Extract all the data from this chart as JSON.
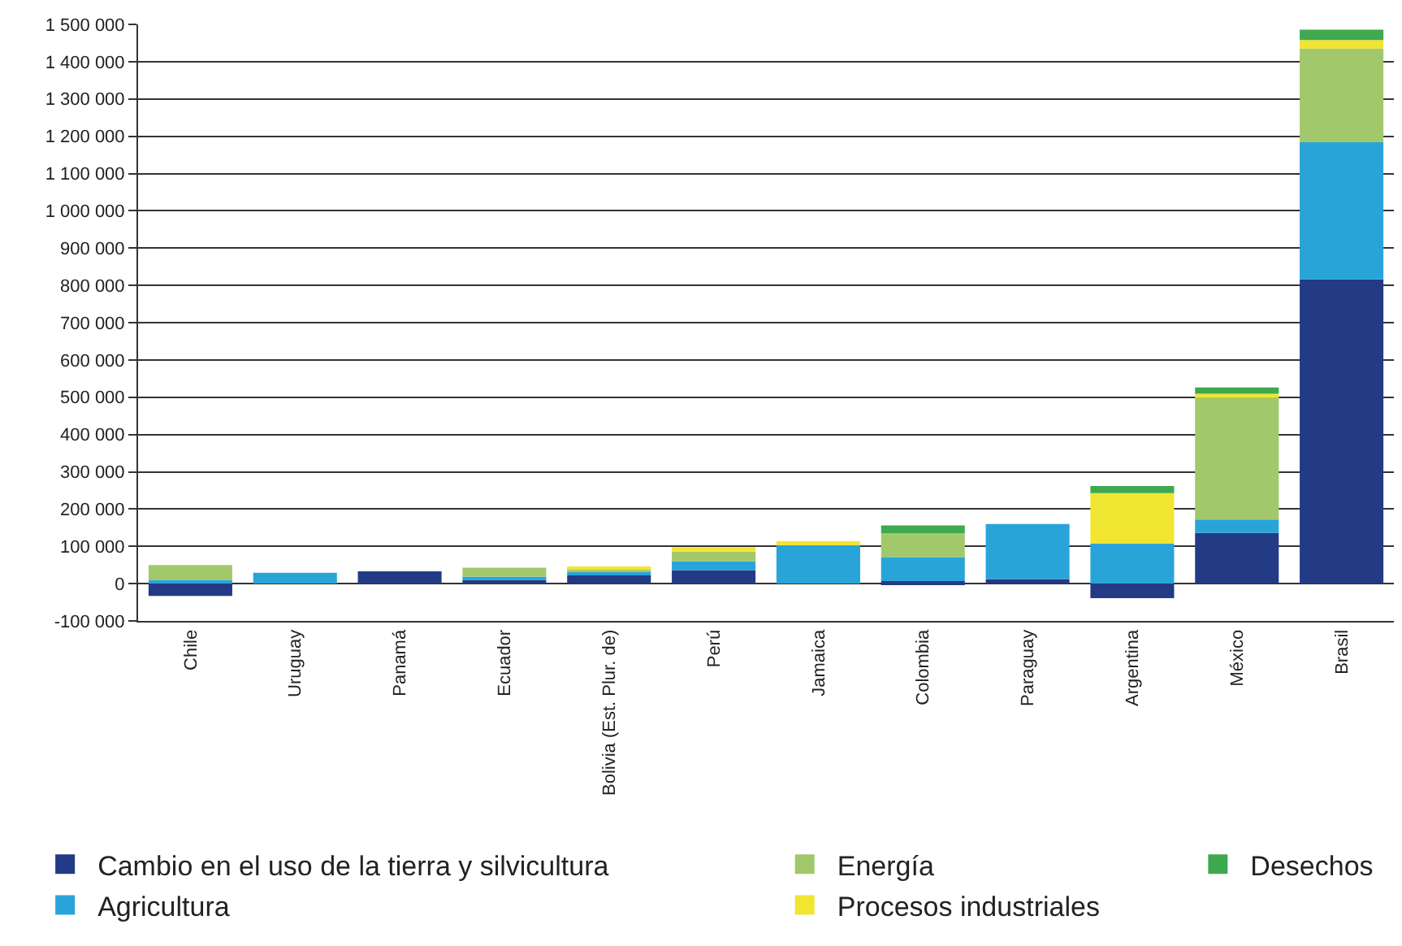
{
  "chart_data": {
    "type": "bar",
    "stacked": true,
    "categories": [
      "Chile",
      "Uruguay",
      "Panamá",
      "Ecuador",
      "Bolivia (Est. Plur. de)",
      "Perú",
      "Jamaica",
      "Colombia",
      "Paraguay",
      "Argentina",
      "México",
      "Brasil"
    ],
    "series": [
      {
        "name": "Cambio en el uso de la tierra y silvicultura",
        "color": "#233a85",
        "values": [
          -33000,
          null,
          33000,
          10000,
          22000,
          36000,
          null,
          7000,
          12000,
          -39000,
          136000,
          816000
        ]
      },
      {
        "name": "Agricultura",
        "color": "#29a4d9",
        "values": [
          10000,
          29000,
          null,
          9000,
          11000,
          24000,
          103000,
          64000,
          148000,
          107000,
          36000,
          368000
        ]
      },
      {
        "name": "Energía",
        "color": "#a2c86c",
        "values": [
          40000,
          null,
          null,
          24000,
          4000,
          26000,
          null,
          64000,
          null,
          null,
          326000,
          251000
        ]
      },
      {
        "name": "Procesos industriales",
        "color": "#f0e531",
        "values": [
          null,
          null,
          null,
          null,
          9000,
          12000,
          11000,
          null,
          null,
          136000,
          11000,
          23000
        ]
      },
      {
        "name": "Desechos",
        "color": "#3fa94f",
        "values": [
          null,
          null,
          null,
          null,
          null,
          null,
          null,
          21000,
          null,
          19000,
          17000,
          28000
        ]
      }
    ],
    "ylim": [
      -100000,
      1500000
    ],
    "yticks": [
      {
        "value": -100000,
        "label": "-100 000"
      },
      0,
      {
        "value": 100000,
        "label": "100 000"
      },
      {
        "value": 200000,
        "label": "200 000"
      },
      {
        "value": 300000,
        "label": "300 000"
      },
      {
        "value": 400000,
        "label": "400 000"
      },
      {
        "value": 500000,
        "label": "500 000"
      },
      {
        "value": 600000,
        "label": "600 000"
      },
      {
        "value": 700000,
        "label": "700 000"
      },
      {
        "value": 800000,
        "label": "800 000"
      },
      {
        "value": 900000,
        "label": "900 000"
      },
      {
        "value": 1000000,
        "label": "1 000 000"
      },
      {
        "value": 1100000,
        "label": "1 100 000"
      },
      {
        "value": 1200000,
        "label": "1 200 000"
      },
      {
        "value": 1300000,
        "label": "1 300 000"
      },
      {
        "value": 1400000,
        "label": "1 400 000"
      },
      {
        "value": 1500000,
        "label": "1 500 000"
      }
    ],
    "grid": "y",
    "legend": "bottom"
  }
}
